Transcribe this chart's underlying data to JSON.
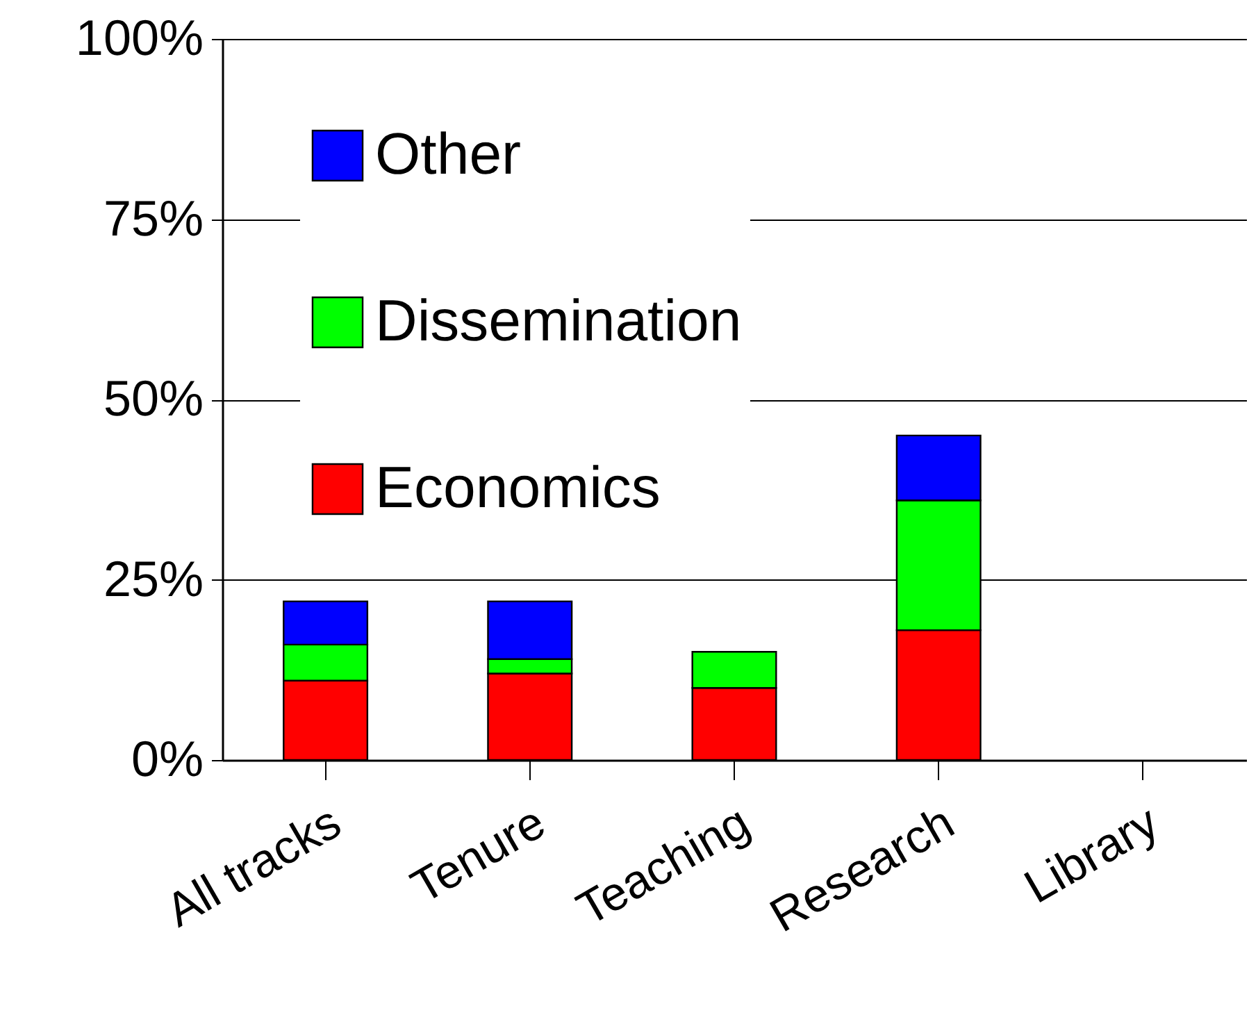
{
  "chart_data": {
    "type": "bar",
    "stacked": true,
    "categories": [
      "All tracks",
      "Tenure",
      "Teaching",
      "Research",
      "Library"
    ],
    "series": [
      {
        "name": "Economics",
        "color": "#ff0000",
        "values": [
          11,
          12,
          10,
          18,
          null
        ]
      },
      {
        "name": "Dissemination",
        "color": "#00ff00",
        "values": [
          5,
          2,
          5,
          18,
          null
        ]
      },
      {
        "name": "Other",
        "color": "#0000ff",
        "values": [
          6,
          8,
          null,
          9,
          null
        ]
      }
    ],
    "ylim": [
      0,
      100
    ],
    "yticks": [
      {
        "value": 0,
        "label": "0%"
      },
      {
        "value": 25,
        "label": "25%"
      },
      {
        "value": 50,
        "label": "50%"
      },
      {
        "value": 75,
        "label": "75%"
      },
      {
        "value": 100,
        "label": "100%"
      }
    ],
    "grid": "y",
    "legend": "top left"
  }
}
